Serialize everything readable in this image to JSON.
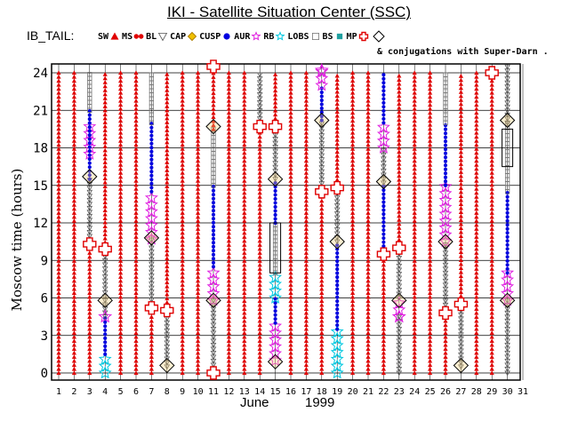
{
  "title": "IKI - Satellite Situation Center (SSC)",
  "legend_prefix": "IB_TAIL:",
  "conjugation_note": "& conjugations with Super-Darn .",
  "legend": [
    {
      "label": "SW",
      "symbol": "tri",
      "color": "#e00000"
    },
    {
      "label": "MS",
      "symbol": "dotpair",
      "color": "#e00000"
    },
    {
      "label": "BL",
      "symbol": "dtri",
      "color": "#555555"
    },
    {
      "label": "CAP",
      "symbol": "diamond",
      "color": "#f0c000"
    },
    {
      "label": "CUSP",
      "symbol": "dot",
      "color": "#0000e0"
    },
    {
      "label": "AUR",
      "symbol": "star",
      "color": "#e020e0"
    },
    {
      "label": "RB",
      "symbol": "star",
      "color": "#00c8e0"
    },
    {
      "label": "LOBS",
      "symbol": "square",
      "color": "#777777"
    },
    {
      "label": "BS",
      "symbol": "sqfill",
      "color": "#20a0a0"
    },
    {
      "label": "MP",
      "symbol": "cross",
      "color": "#e00000"
    },
    {
      "label": "",
      "symbol": "conj",
      "color": "#000000"
    }
  ],
  "axis": {
    "ylabel": "Moscow time (hours)",
    "xlabel": "June",
    "year": "1999"
  },
  "chart_data": {
    "type": "scatter",
    "title": "IKI - Satellite Situation Center (SSC)",
    "xlabel": "June 1999",
    "ylabel": "Moscow time (hours)",
    "xlim": [
      1,
      31
    ],
    "ylim": [
      0,
      24
    ],
    "x_ticks": [
      "1",
      "2",
      "3",
      "4",
      "5",
      "6",
      "7",
      "8",
      "9",
      "10",
      "11",
      "12",
      "13",
      "14",
      "15",
      "16",
      "17",
      "18",
      "19",
      "20",
      "21",
      "22",
      "23",
      "24",
      "25",
      "26",
      "27",
      "28",
      "29",
      "30",
      "31"
    ],
    "y_ticks": [
      "0",
      "3",
      "6",
      "9",
      "12",
      "15",
      "18",
      "21",
      "24"
    ],
    "grid": true,
    "days": [
      {
        "day": 1,
        "segments": [
          [
            "SW",
            0,
            24
          ]
        ]
      },
      {
        "day": 2,
        "segments": [
          [
            "SW",
            0,
            24
          ]
        ]
      },
      {
        "day": 3,
        "segments": [
          [
            "SW",
            0,
            10.3
          ],
          [
            "BL",
            10.3,
            15.5
          ],
          [
            "AUR",
            17.5,
            20.2
          ],
          [
            "CUSP",
            15.5,
            21
          ],
          [
            "LOBS",
            21,
            24
          ]
        ]
      },
      {
        "day": 4,
        "segments": [
          [
            "RB",
            0,
            1.5
          ],
          [
            "CUSP",
            1.5,
            4.5
          ],
          [
            "BL",
            4.5,
            9.8
          ],
          [
            "SW",
            9.8,
            24
          ]
        ]
      },
      {
        "day": 5,
        "segments": [
          [
            "SW",
            0,
            24
          ]
        ]
      },
      {
        "day": 6,
        "segments": [
          [
            "SW",
            0,
            24
          ]
        ]
      },
      {
        "day": 7,
        "segments": [
          [
            "SW",
            0,
            5.2
          ],
          [
            "BL",
            5.2,
            10.7
          ],
          [
            "AUR",
            10.7,
            14.5
          ],
          [
            "CUSP",
            14.5,
            20
          ],
          [
            "LOBS",
            20,
            24
          ]
        ]
      },
      {
        "day": 8,
        "segments": [
          [
            "BL",
            0.5,
            5
          ],
          [
            "SW",
            5,
            24
          ]
        ]
      },
      {
        "day": 9,
        "segments": [
          [
            "SW",
            0,
            24
          ]
        ]
      },
      {
        "day": 10,
        "segments": [
          [
            "SW",
            0,
            24
          ]
        ]
      },
      {
        "day": 11,
        "segments": [
          [
            "BL",
            0,
            5.8
          ],
          [
            "AUR",
            5.8,
            8.5
          ],
          [
            "CUSP",
            8.5,
            15
          ],
          [
            "LOBS",
            15,
            19.5
          ],
          [
            "SW",
            19.5,
            24.5
          ]
        ]
      },
      {
        "day": 12,
        "segments": [
          [
            "SW",
            0,
            24
          ]
        ]
      },
      {
        "day": 13,
        "segments": [
          [
            "SW",
            0,
            24
          ]
        ]
      },
      {
        "day": 14,
        "segments": [
          [
            "SW",
            0,
            19.7
          ],
          [
            "BL",
            19.7,
            24
          ]
        ]
      },
      {
        "day": 15,
        "segments": [
          [
            "AUR",
            1,
            4
          ],
          [
            "CUSP",
            4,
            6
          ],
          [
            "RB",
            6,
            8
          ],
          [
            "LOBS",
            8,
            12
          ],
          [
            "CUSP",
            12,
            15.5
          ],
          [
            "BL",
            15.5,
            19.7
          ],
          [
            "SW",
            19.7,
            24
          ]
        ]
      },
      {
        "day": 16,
        "segments": [
          [
            "SW",
            0,
            24
          ]
        ]
      },
      {
        "day": 17,
        "segments": [
          [
            "SW",
            0,
            24
          ]
        ]
      },
      {
        "day": 18,
        "segments": [
          [
            "SW",
            0,
            14.5
          ],
          [
            "BL",
            14.5,
            20.2
          ],
          [
            "CUSP",
            20.2,
            23
          ],
          [
            "AUR",
            23,
            24.3
          ]
        ]
      },
      {
        "day": 19,
        "segments": [
          [
            "RB",
            0,
            3.5
          ],
          [
            "CUSP",
            3.5,
            10.5
          ],
          [
            "BL",
            10.5,
            14.8
          ],
          [
            "SW",
            14.8,
            24
          ]
        ]
      },
      {
        "day": 20,
        "segments": [
          [
            "SW",
            0,
            24
          ]
        ]
      },
      {
        "day": 21,
        "segments": [
          [
            "SW",
            0,
            24
          ]
        ]
      },
      {
        "day": 22,
        "segments": [
          [
            "SW",
            0,
            9.5
          ],
          [
            "CUSP",
            9.5,
            15.2
          ],
          [
            "BL",
            15.2,
            18
          ],
          [
            "AUR",
            18,
            20
          ],
          [
            "CUSP",
            20,
            24
          ]
        ]
      },
      {
        "day": 23,
        "segments": [
          [
            "BL",
            0,
            4.5
          ],
          [
            "AUR",
            4.5,
            6
          ],
          [
            "BL",
            6,
            10
          ],
          [
            "SW",
            10,
            24
          ]
        ]
      },
      {
        "day": 24,
        "segments": [
          [
            "SW",
            0,
            24
          ]
        ]
      },
      {
        "day": 25,
        "segments": [
          [
            "SW",
            0,
            24
          ]
        ]
      },
      {
        "day": 26,
        "segments": [
          [
            "SW",
            0,
            4.8
          ],
          [
            "BL",
            4.8,
            10.5
          ],
          [
            "AUR",
            10.5,
            15
          ],
          [
            "CUSP",
            15,
            20
          ],
          [
            "LOBS",
            20,
            24
          ]
        ]
      },
      {
        "day": 27,
        "segments": [
          [
            "BL",
            0.5,
            5.5
          ],
          [
            "SW",
            5.5,
            24
          ]
        ]
      },
      {
        "day": 28,
        "segments": [
          [
            "SW",
            0,
            24
          ]
        ]
      },
      {
        "day": 29,
        "segments": [
          [
            "SW",
            0,
            24
          ]
        ]
      },
      {
        "day": 30,
        "segments": [
          [
            "BL",
            0,
            5.8
          ],
          [
            "AUR",
            5.8,
            8
          ],
          [
            "CUSP",
            8,
            14.5
          ],
          [
            "LOBS",
            14.5,
            20
          ],
          [
            "BL",
            20,
            24.5
          ]
        ]
      }
    ],
    "markers": [
      {
        "day": 3,
        "type": "MP",
        "hour": 10.3
      },
      {
        "day": 3,
        "type": "conj",
        "hour": 15.7
      },
      {
        "day": 4,
        "type": "MP",
        "hour": 9.9
      },
      {
        "day": 4,
        "type": "conj",
        "hour": 5.8
      },
      {
        "day": 4,
        "type": "AUR",
        "hour": 4.5
      },
      {
        "day": 7,
        "type": "MP",
        "hour": 5.2
      },
      {
        "day": 7,
        "type": "conj",
        "hour": 10.8
      },
      {
        "day": 8,
        "type": "MP",
        "hour": 5
      },
      {
        "day": 8,
        "type": "conj",
        "hour": 0.6
      },
      {
        "day": 11,
        "type": "MP",
        "hour": 24.5
      },
      {
        "day": 11,
        "type": "MP",
        "hour": 0
      },
      {
        "day": 11,
        "type": "conj",
        "hour": 5.8
      },
      {
        "day": 11,
        "type": "conj",
        "hour": 19.7
      },
      {
        "day": 14,
        "type": "MP",
        "hour": 19.7
      },
      {
        "day": 15,
        "type": "MP",
        "hour": 19.7
      },
      {
        "day": 15,
        "type": "conj",
        "hour": 15.5
      },
      {
        "day": 15,
        "type": "conj",
        "hour": 0.9
      },
      {
        "day": 18,
        "type": "MP",
        "hour": 14.5
      },
      {
        "day": 18,
        "type": "conj",
        "hour": 20.2
      },
      {
        "day": 18,
        "type": "AUR",
        "hour": 24.2
      },
      {
        "day": 19,
        "type": "MP",
        "hour": 14.8
      },
      {
        "day": 19,
        "type": "conj",
        "hour": 10.5
      },
      {
        "day": 22,
        "type": "MP",
        "hour": 9.5
      },
      {
        "day": 22,
        "type": "conj",
        "hour": 15.3
      },
      {
        "day": 23,
        "type": "MP",
        "hour": 10
      },
      {
        "day": 23,
        "type": "conj",
        "hour": 5.8
      },
      {
        "day": 23,
        "type": "AUR",
        "hour": 4.5
      },
      {
        "day": 26,
        "type": "MP",
        "hour": 4.8
      },
      {
        "day": 26,
        "type": "conj",
        "hour": 10.5
      },
      {
        "day": 27,
        "type": "MP",
        "hour": 5.5
      },
      {
        "day": 27,
        "type": "conj",
        "hour": 0.6
      },
      {
        "day": 29,
        "type": "MP",
        "hour": 24
      },
      {
        "day": 30,
        "type": "conj",
        "hour": 5.8
      },
      {
        "day": 30,
        "type": "conj",
        "hour": 20.2
      }
    ],
    "boxes": [
      {
        "day": 15,
        "from": 8,
        "to": 12
      },
      {
        "day": 30,
        "from": 16.5,
        "to": 19.5
      }
    ]
  }
}
